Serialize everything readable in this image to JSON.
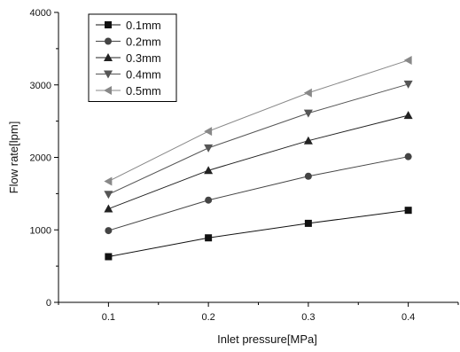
{
  "chart_data": {
    "type": "line",
    "title": "",
    "xlabel": "Inlet pressure[MPa]",
    "ylabel": "Flow rate[lpm]",
    "x": [
      0.1,
      0.2,
      0.3,
      0.4
    ],
    "x_tick_labels": [
      "0.1",
      "0.2",
      "0.3",
      "0.4"
    ],
    "xlim": [
      0.05,
      0.45
    ],
    "ylim": [
      0,
      4000
    ],
    "y_ticks": [
      0,
      1000,
      2000,
      3000,
      4000
    ],
    "y_tick_labels": [
      "0",
      "1000",
      "2000",
      "3000",
      "4000"
    ],
    "grid": false,
    "legend_position": "top-left",
    "series": [
      {
        "name": "0.1mm",
        "marker": "square",
        "color": "#111111",
        "values": [
          630,
          890,
          1090,
          1270
        ]
      },
      {
        "name": "0.2mm",
        "marker": "circle",
        "color": "#444444",
        "values": [
          990,
          1410,
          1740,
          2010
        ]
      },
      {
        "name": "0.3mm",
        "marker": "triangle-up",
        "color": "#222222",
        "values": [
          1290,
          1820,
          2230,
          2580
        ]
      },
      {
        "name": "0.4mm",
        "marker": "triangle-down",
        "color": "#555555",
        "values": [
          1490,
          2130,
          2610,
          3010
        ]
      },
      {
        "name": "0.5mm",
        "marker": "triangle-left",
        "color": "#888888",
        "values": [
          1670,
          2360,
          2890,
          3340
        ]
      }
    ]
  }
}
